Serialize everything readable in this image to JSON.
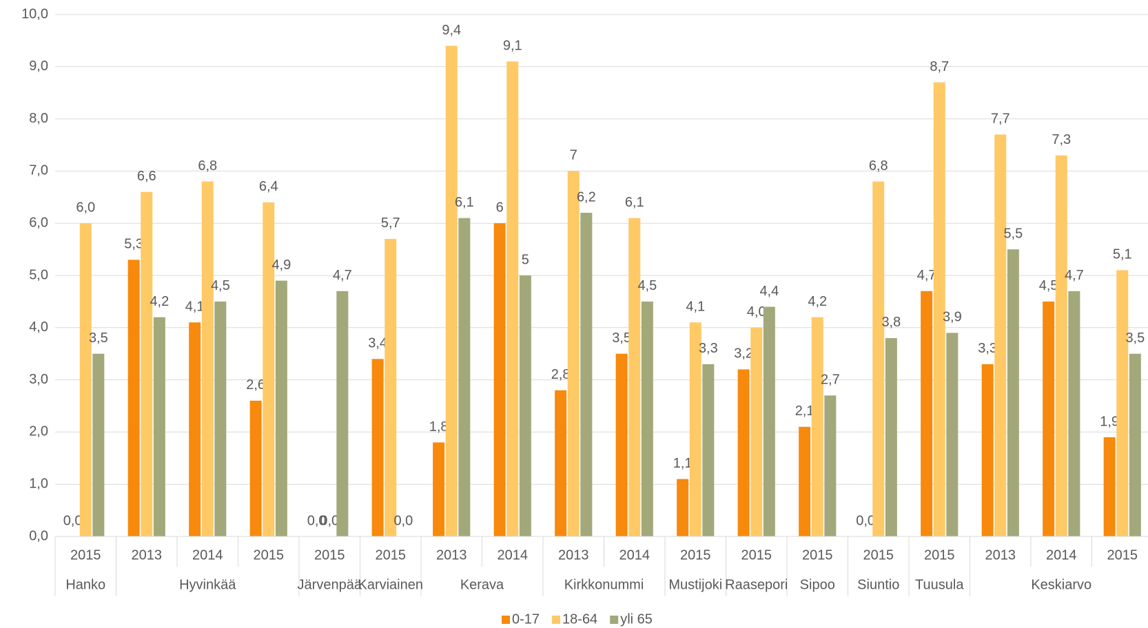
{
  "chart_data": {
    "type": "bar",
    "categories": [
      "2015",
      "2013",
      "2014",
      "2015",
      "2015",
      "2015",
      "2013",
      "2014",
      "2013",
      "2014",
      "2015",
      "2015",
      "2015",
      "2015",
      "2015",
      "2013",
      "2014",
      "2015"
    ],
    "groups": [
      "Hanko",
      "Hyvinkää",
      null,
      null,
      "Järvenpää",
      "Karviainen",
      "Kerava",
      null,
      "Kirkkonummi",
      null,
      "Mustijoki",
      "Raasepori",
      "Sipoo",
      "Siuntio",
      "Tuusula",
      "Keskiarvo",
      null,
      null
    ],
    "series": [
      {
        "name": "0-17",
        "color": "#f7890c",
        "values": [
          0,
          5.3,
          4.1,
          2.6,
          0,
          3.4,
          1.8,
          6,
          2.8,
          3.5,
          1.1,
          3.2,
          2.1,
          0,
          4.7,
          3.3,
          4.5,
          1.9
        ],
        "value_labels": [
          "0,0",
          "5,3",
          "4,1",
          "2,6",
          "0,0",
          "3,4",
          "1,8",
          "6",
          "2,8",
          "3,5",
          "1,1",
          "3,2",
          "2,1",
          "0,0",
          "4,7",
          "3,3",
          "4,5",
          "1,9"
        ]
      },
      {
        "name": "18-64",
        "color": "#ffc966",
        "values": [
          6.0,
          6.6,
          6.8,
          6.4,
          0,
          5.7,
          9.4,
          9.1,
          7,
          6.1,
          4.1,
          4.0,
          4.2,
          6.8,
          8.7,
          7.7,
          7.3,
          5.1
        ],
        "value_labels": [
          "6,0",
          "6,6",
          "6,8",
          "6,4",
          "0,0",
          "5,7",
          "9,4",
          "9,1",
          "7",
          "6,1",
          "4,1",
          "4,0",
          "4,2",
          "6,8",
          "8,7",
          "7,7",
          "7,3",
          "5,1"
        ]
      },
      {
        "name": "yli 65",
        "color": "#a3a87b",
        "values": [
          3.5,
          4.2,
          4.5,
          4.9,
          4.7,
          0,
          6.1,
          5,
          6.2,
          4.5,
          3.3,
          4.4,
          2.7,
          3.8,
          3.9,
          5.5,
          4.7,
          3.5
        ],
        "value_labels": [
          "3,5",
          "4,2",
          "4,5",
          "4,9",
          "4,7",
          "0,0",
          "6,1",
          "5",
          "6,2",
          "4,5",
          "3,3",
          "4,4",
          "2,7",
          "3,8",
          "3,9",
          "5,5",
          "4,7",
          "3,5"
        ]
      }
    ],
    "ylim": [
      0,
      10
    ],
    "yticks": [
      {
        "value": 0,
        "label": "0,0"
      },
      {
        "value": 1,
        "label": "1,0"
      },
      {
        "value": 2,
        "label": "2,0"
      },
      {
        "value": 3,
        "label": "3,0"
      },
      {
        "value": 4,
        "label": "4,0"
      },
      {
        "value": 5,
        "label": "5,0"
      },
      {
        "value": 6,
        "label": "6,0"
      },
      {
        "value": 7,
        "label": "7,0"
      },
      {
        "value": 8,
        "label": "8,0"
      },
      {
        "value": 9,
        "label": "9,0"
      },
      {
        "value": 10,
        "label": "10,0"
      }
    ],
    "grid": true,
    "legend": "bottom"
  }
}
